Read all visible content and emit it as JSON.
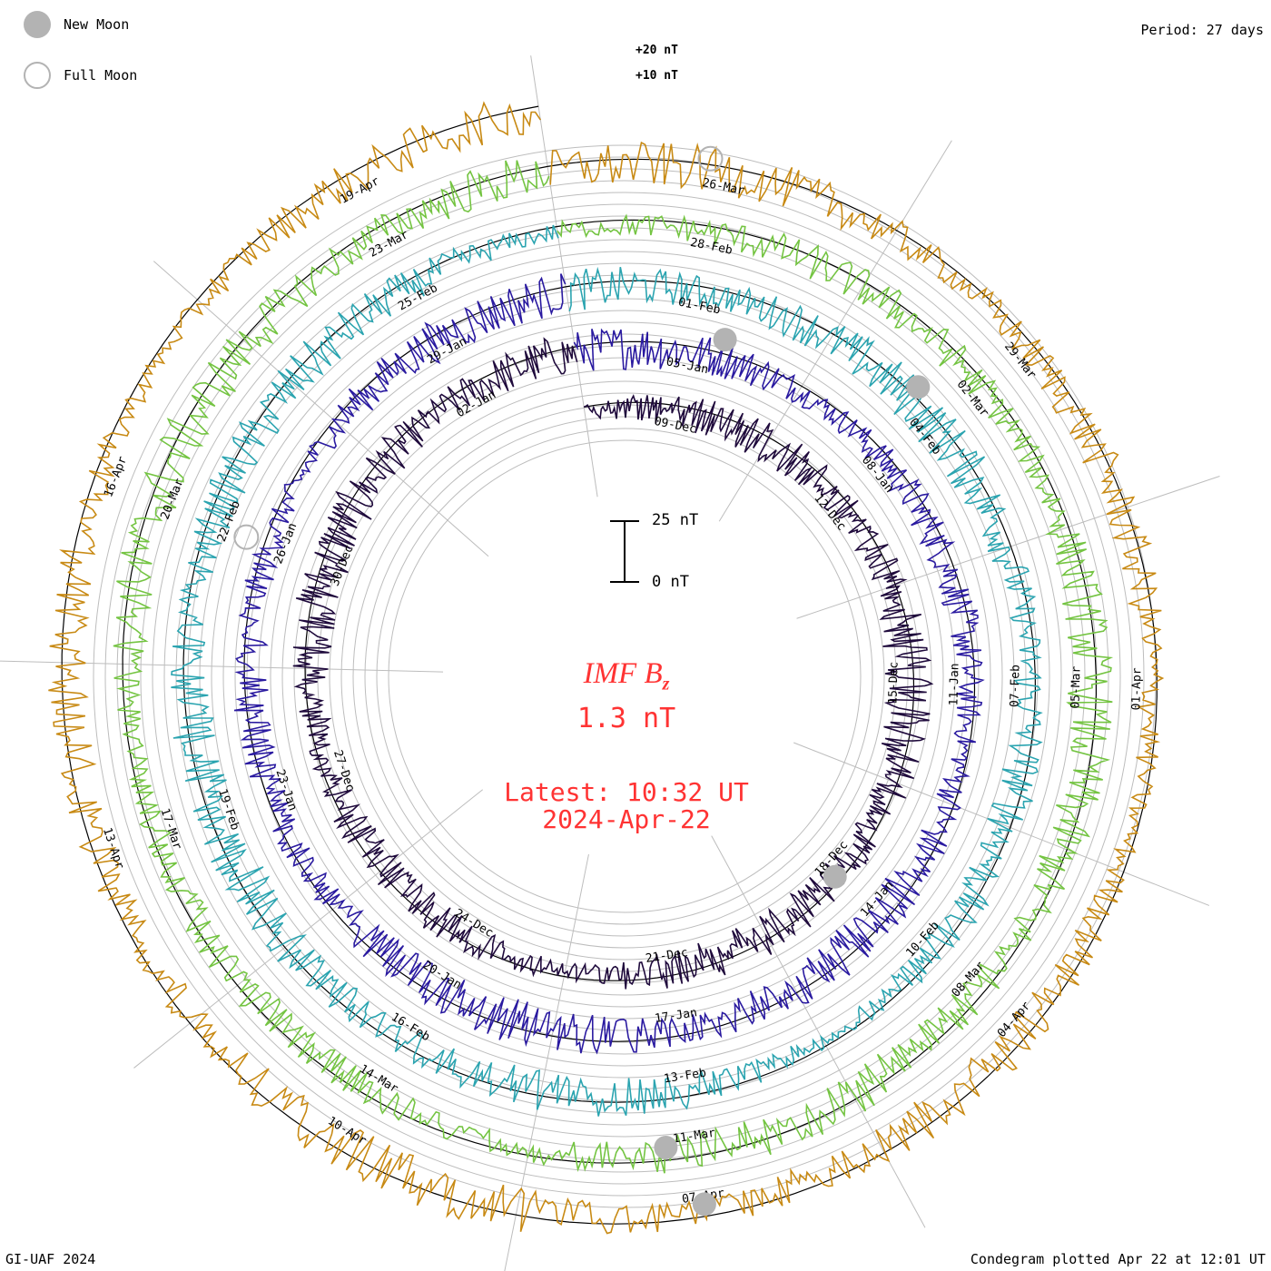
{
  "period_label": "Period: 27 days",
  "legend": {
    "new_moon": "New Moon",
    "full_moon": "Full Moon"
  },
  "reference_labels": {
    "plus20": "+20 nT",
    "plus10": "+10 nT"
  },
  "scale_bar": {
    "top_label": "25 nT",
    "bottom_label": "0 nT"
  },
  "center": {
    "parameter_base": "IMF B",
    "parameter_sub": "z",
    "value": "1.3 nT",
    "latest_line1": "Latest: 10:32 UT",
    "latest_line2": "2024-Apr-22"
  },
  "footer": {
    "credit": "GI-UAF 2024",
    "plotted": "Condegram plotted Apr 22 at 12:01 UT"
  },
  "colors": {
    "center_text": "#ff3333",
    "grid": "#bdbdbd",
    "moon": "#b3b3b3"
  },
  "chart_data": {
    "type": "line",
    "subtype": "condegram spiral",
    "series": [
      {
        "color": "#1f0a3c",
        "dates": [
          "09-Dec",
          "12-Dec",
          "15-Dec",
          "18-Dec",
          "21-Dec",
          "24-Dec",
          "27-Dec",
          "30-Dec",
          "02-Jan"
        ]
      },
      {
        "color": "#2a1aa0",
        "dates": [
          "05-Jan",
          "08-Jan",
          "11-Jan",
          "14-Jan",
          "17-Jan",
          "20-Jan",
          "23-Jan",
          "26-Jan",
          "29-Jan"
        ]
      },
      {
        "color": "#2ba4b0",
        "dates": [
          "01-Feb",
          "04-Feb",
          "07-Feb",
          "10-Feb",
          "13-Feb",
          "16-Feb",
          "19-Feb",
          "22-Feb",
          "25-Feb"
        ]
      },
      {
        "color": "#74c442",
        "dates": [
          "28-Feb",
          "02-Mar",
          "05-Mar",
          "08-Mar",
          "11-Mar",
          "14-Mar",
          "17-Mar",
          "20-Mar",
          "23-Mar"
        ]
      },
      {
        "color": "#c88a14",
        "dates": [
          "26-Mar",
          "29-Mar",
          "01-Apr",
          "04-Apr",
          "07-Apr",
          "10-Apr",
          "13-Apr",
          "16-Apr",
          "19-Apr"
        ]
      }
    ],
    "x_unit": "days",
    "y_unit": "nT",
    "grid": true
  }
}
